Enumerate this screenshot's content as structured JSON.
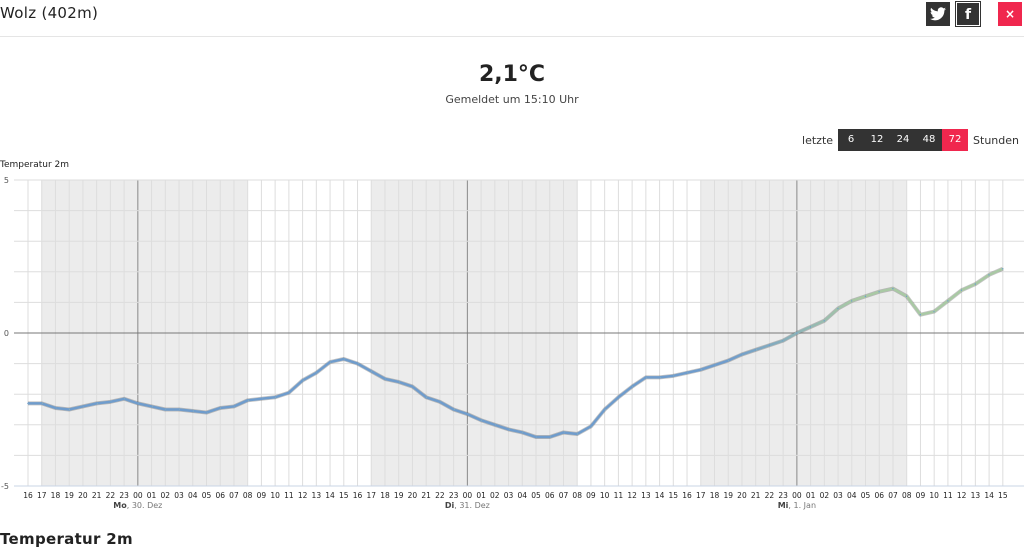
{
  "header": {
    "title": "Wolz (402m)",
    "twitter_icon": "twitter-icon",
    "facebook_icon": "facebook-icon",
    "close_label": "×"
  },
  "current": {
    "temperature": "2,1°C",
    "reported": "Gemeldet um 15:10 Uhr"
  },
  "range": {
    "prefix": "letzte",
    "suffix": "Stunden",
    "options": [
      "6",
      "12",
      "24",
      "48",
      "72"
    ],
    "active": "72"
  },
  "colors": {
    "accent": "#f0274e",
    "dark": "#333333",
    "line_start": "#6f9ccc",
    "line_end": "#a9c9a4",
    "night": "#ececec"
  },
  "chart_data": {
    "type": "line",
    "title": "Temperatur 2m",
    "ylim": [
      -5,
      5
    ],
    "yticks": [
      "5",
      "0",
      "-5"
    ],
    "x_hours": [
      "16",
      "17",
      "18",
      "19",
      "20",
      "21",
      "22",
      "23",
      "00",
      "01",
      "02",
      "03",
      "04",
      "05",
      "06",
      "07",
      "08",
      "09",
      "10",
      "11",
      "12",
      "13",
      "14",
      "15",
      "16",
      "17",
      "18",
      "19",
      "20",
      "21",
      "22",
      "23",
      "00",
      "01",
      "02",
      "03",
      "04",
      "05",
      "06",
      "07",
      "08",
      "09",
      "10",
      "11",
      "12",
      "13",
      "14",
      "15",
      "16",
      "17",
      "18",
      "19",
      "20",
      "21",
      "22",
      "23",
      "00",
      "01",
      "02",
      "03",
      "04",
      "05",
      "06",
      "07",
      "08",
      "09",
      "10",
      "11",
      "12",
      "13",
      "14",
      "15"
    ],
    "day_labels": [
      {
        "index": 8,
        "day": "Mo",
        "date": ", 30. Dez"
      },
      {
        "index": 32,
        "day": "Di",
        "date": ", 31. Dez"
      },
      {
        "index": 56,
        "day": "Mi",
        "date": ", 1. Jan"
      }
    ],
    "night_bands": [
      [
        1,
        16
      ],
      [
        25,
        40
      ],
      [
        49,
        64
      ]
    ],
    "values": [
      -2.3,
      -2.3,
      -2.45,
      -2.5,
      -2.4,
      -2.3,
      -2.25,
      -2.15,
      -2.3,
      -2.4,
      -2.5,
      -2.5,
      -2.55,
      -2.6,
      -2.45,
      -2.4,
      -2.2,
      -2.15,
      -2.1,
      -1.95,
      -1.55,
      -1.3,
      -0.95,
      -0.85,
      -1.0,
      -1.25,
      -1.5,
      -1.6,
      -1.75,
      -2.1,
      -2.25,
      -2.5,
      -2.65,
      -2.85,
      -3.0,
      -3.15,
      -3.25,
      -3.4,
      -3.4,
      -3.25,
      -3.3,
      -3.05,
      -2.5,
      -2.1,
      -1.75,
      -1.45,
      -1.45,
      -1.4,
      -1.3,
      -1.2,
      -1.05,
      -0.9,
      -0.7,
      -0.55,
      -0.4,
      -0.25,
      0.0,
      0.2,
      0.4,
      0.8,
      1.05,
      1.2,
      1.35,
      1.45,
      1.2,
      0.6,
      0.7,
      1.05,
      1.4,
      1.6,
      1.9,
      2.1
    ]
  },
  "section_title": "Temperatur 2m"
}
